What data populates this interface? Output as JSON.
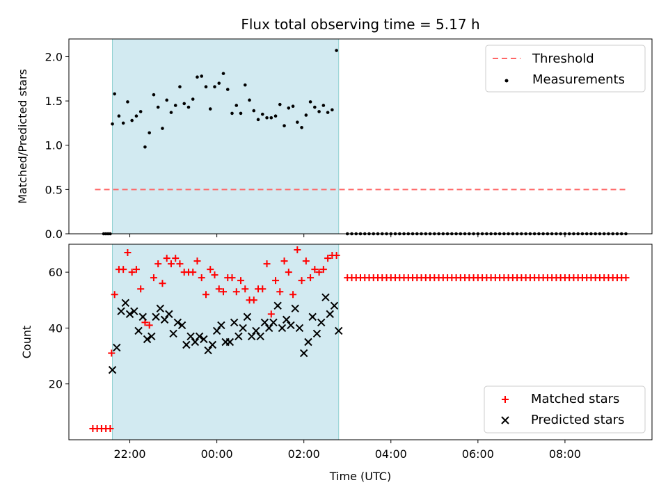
{
  "chart_data": [
    {
      "type": "scatter",
      "title": "Flux total observing time = 5.17 h",
      "ylabel": "Matched/Predicted stars",
      "xlabel": "",
      "ylim": [
        0,
        2.2
      ],
      "yticks": [
        0.0,
        0.5,
        1.0,
        1.5,
        2.0
      ],
      "ytick_labels": [
        "0.0",
        "0.5",
        "1.0",
        "1.5",
        "2.0"
      ],
      "x_unit": "hours since 00:00 UTC",
      "xlim": [
        -3.4,
        10.0
      ],
      "xticks": [
        -2,
        0,
        2,
        4,
        6,
        8
      ],
      "shaded_interval": [
        -2.4,
        2.8
      ],
      "shade_color": "#add8e6",
      "threshold": {
        "name": "Threshold",
        "value": 0.5,
        "x_range": [
          -2.8,
          9.4
        ],
        "color": "#ff6666"
      },
      "legend": {
        "position": "upper right",
        "entries": [
          "Threshold",
          "Measurements"
        ]
      },
      "series": [
        {
          "name": "Measurements",
          "color": "#000000",
          "x": [
            -2.6,
            -2.55,
            -2.5,
            -2.45,
            -2.4,
            -2.35,
            -2.25,
            -2.15,
            -2.05,
            -1.95,
            -1.85,
            -1.75,
            -1.65,
            -1.55,
            -1.45,
            -1.35,
            -1.25,
            -1.15,
            -1.05,
            -0.95,
            -0.85,
            -0.75,
            -0.65,
            -0.55,
            -0.45,
            -0.35,
            -0.25,
            -0.15,
            -0.05,
            0.05,
            0.15,
            0.25,
            0.35,
            0.45,
            0.55,
            0.65,
            0.75,
            0.85,
            0.95,
            1.05,
            1.15,
            1.25,
            1.35,
            1.45,
            1.55,
            1.65,
            1.75,
            1.85,
            1.95,
            2.05,
            2.15,
            2.25,
            2.35,
            2.45,
            2.55,
            2.65,
            2.75
          ],
          "y": [
            0,
            0,
            0,
            0,
            1.24,
            1.58,
            1.33,
            1.25,
            1.49,
            1.28,
            1.33,
            1.38,
            0.98,
            1.14,
            1.57,
            1.43,
            1.19,
            1.51,
            1.37,
            1.45,
            1.66,
            1.47,
            1.43,
            1.52,
            1.77,
            1.78,
            1.66,
            1.41,
            1.66,
            1.7,
            1.81,
            1.63,
            1.36,
            1.45,
            1.36,
            1.68,
            1.51,
            1.39,
            1.29,
            1.35,
            1.31,
            1.31,
            1.33,
            1.46,
            1.22,
            1.42,
            1.44,
            1.26,
            1.2,
            1.34,
            1.49,
            1.43,
            1.38,
            1.45,
            1.37,
            1.4,
            2.07
          ]
        }
      ],
      "zero_series_x_range": [
        3.0,
        9.4
      ]
    },
    {
      "type": "scatter",
      "title": "",
      "ylabel": "Count",
      "xlabel": "Time (UTC)",
      "ylim": [
        0,
        70
      ],
      "yticks": [
        20,
        40,
        60
      ],
      "ytick_labels": [
        "20",
        "40",
        "60"
      ],
      "xlim": [
        -3.4,
        10.0
      ],
      "xticks": [
        -2,
        0,
        2,
        4,
        6,
        8
      ],
      "xtick_labels": [
        "22:00",
        "00:00",
        "02:00",
        "04:00",
        "06:00",
        "08:00"
      ],
      "shaded_interval": [
        -2.4,
        2.8
      ],
      "shade_color": "#add8e6",
      "legend": {
        "position": "lower right",
        "entries": [
          "Matched stars",
          "Predicted stars"
        ]
      },
      "series": [
        {
          "name": "Matched stars",
          "color": "#ff0000",
          "marker": "+",
          "x": [
            -2.85,
            -2.75,
            -2.65,
            -2.55,
            -2.45,
            -2.42,
            -2.35,
            -2.25,
            -2.15,
            -2.05,
            -1.95,
            -1.85,
            -1.75,
            -1.65,
            -1.55,
            -1.45,
            -1.35,
            -1.25,
            -1.15,
            -1.05,
            -0.95,
            -0.85,
            -0.75,
            -0.65,
            -0.55,
            -0.45,
            -0.35,
            -0.25,
            -0.15,
            -0.05,
            0.05,
            0.15,
            0.25,
            0.35,
            0.45,
            0.55,
            0.65,
            0.75,
            0.85,
            0.95,
            1.05,
            1.15,
            1.25,
            1.35,
            1.45,
            1.55,
            1.65,
            1.75,
            1.85,
            1.95,
            2.05,
            2.15,
            2.25,
            2.35,
            2.45,
            2.55,
            2.65,
            2.75
          ],
          "y": [
            4,
            4,
            4,
            4,
            4,
            31,
            52,
            61,
            61,
            67,
            60,
            61,
            54,
            42,
            41,
            58,
            63,
            56,
            65,
            63,
            65,
            63,
            60,
            60,
            60,
            64,
            58,
            52,
            61,
            59,
            54,
            53,
            58,
            58,
            53,
            57,
            54,
            50,
            50,
            54,
            54,
            63,
            45,
            57,
            53,
            64,
            60,
            52,
            68,
            57,
            64,
            58,
            61,
            60,
            61,
            65,
            66,
            66
          ]
        },
        {
          "name": "Predicted stars",
          "color": "#000000",
          "marker": "x",
          "x": [
            -2.4,
            -2.3,
            -2.2,
            -2.1,
            -2.0,
            -1.9,
            -1.8,
            -1.7,
            -1.6,
            -1.5,
            -1.4,
            -1.3,
            -1.2,
            -1.1,
            -1.0,
            -0.9,
            -0.8,
            -0.7,
            -0.6,
            -0.5,
            -0.4,
            -0.3,
            -0.2,
            -0.1,
            0.0,
            0.1,
            0.2,
            0.3,
            0.4,
            0.5,
            0.6,
            0.7,
            0.8,
            0.9,
            1.0,
            1.1,
            1.2,
            1.3,
            1.4,
            1.5,
            1.6,
            1.7,
            1.8,
            1.9,
            2.0,
            2.1,
            2.2,
            2.3,
            2.4,
            2.5,
            2.6,
            2.7,
            2.8
          ],
          "y": [
            25,
            33,
            46,
            49,
            45,
            46,
            39,
            44,
            36,
            37,
            44,
            47,
            43,
            45,
            38,
            42,
            41,
            34,
            37,
            35,
            37,
            36,
            32,
            34,
            39,
            41,
            35,
            35,
            42,
            37,
            40,
            44,
            37,
            39,
            37,
            42,
            40,
            42,
            48,
            40,
            43,
            41,
            47,
            40,
            31,
            35,
            44,
            38,
            42,
            51,
            45,
            48,
            39
          ]
        }
      ],
      "constant_series": {
        "name": "Matched stars",
        "value": 58,
        "x_range": [
          3.0,
          9.4
        ]
      }
    }
  ]
}
